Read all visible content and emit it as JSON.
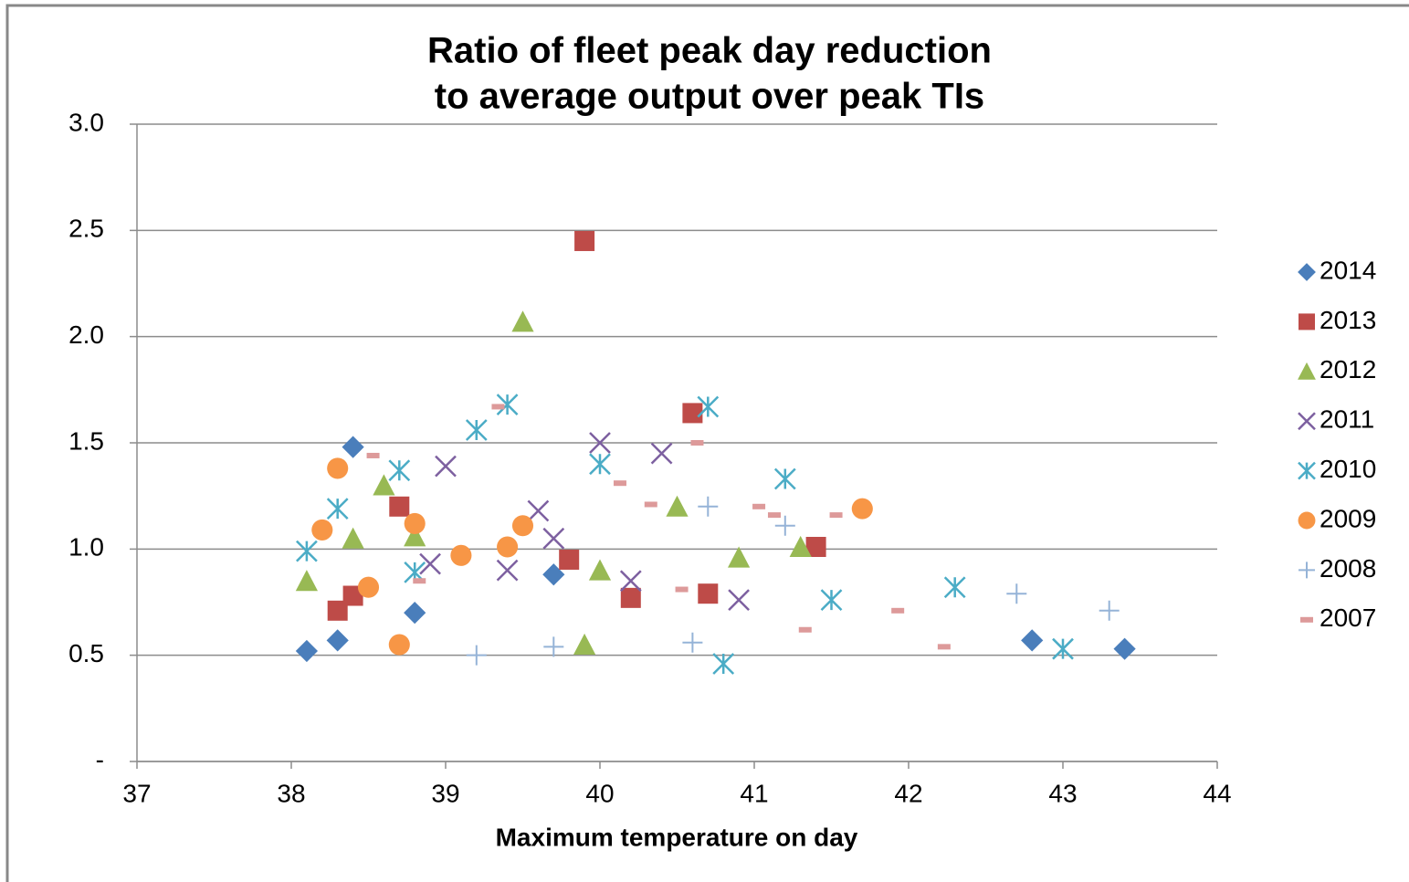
{
  "chart_data": {
    "type": "scatter",
    "title": [
      "Ratio of fleet peak day reduction",
      "to average output over peak TIs"
    ],
    "x_label": "Maximum temperature on day",
    "xlim": [
      37,
      44
    ],
    "xticks": [
      37,
      38,
      39,
      40,
      41,
      42,
      43,
      44
    ],
    "ylim": [
      0,
      3
    ],
    "yticks": [
      {
        "value": 0,
        "label": "-"
      },
      0.5,
      {
        "value": 1,
        "label": "1.0"
      },
      1.5,
      {
        "value": 2,
        "label": "2.0"
      },
      2.5,
      {
        "value": 3,
        "label": "3.0"
      }
    ],
    "grid": true,
    "legend": "right",
    "series": [
      {
        "name": "2014",
        "color": "#4a7ebb",
        "marker": "diamond",
        "x": [
          38.1,
          38.3,
          38.4,
          38.8,
          39.7,
          42.8,
          43.4
        ],
        "values": [
          0.52,
          0.57,
          1.48,
          0.7,
          0.88,
          0.57,
          0.53
        ]
      },
      {
        "name": "2013",
        "color": "#be4b48",
        "marker": "square",
        "x": [
          39.9,
          38.3,
          38.4,
          38.7,
          39.8,
          40.2,
          40.6,
          40.7,
          41.4
        ],
        "values": [
          2.45,
          0.71,
          0.78,
          1.2,
          0.95,
          0.77,
          1.64,
          0.79,
          1.01
        ]
      },
      {
        "name": "2012",
        "color": "#98b954",
        "marker": "triangle",
        "x": [
          38.1,
          38.4,
          38.6,
          38.8,
          39.5,
          39.9,
          40.0,
          40.5,
          40.9,
          41.3
        ],
        "values": [
          0.85,
          1.05,
          1.3,
          1.06,
          2.07,
          0.55,
          0.9,
          1.2,
          0.96,
          1.01
        ]
      },
      {
        "name": "2011",
        "color": "#7d60a0",
        "marker": "x",
        "x": [
          39.0,
          38.9,
          39.4,
          39.6,
          39.7,
          40.0,
          40.4,
          40.2,
          40.9
        ],
        "values": [
          1.39,
          0.93,
          0.9,
          1.18,
          1.05,
          1.5,
          1.45,
          0.85,
          0.76
        ]
      },
      {
        "name": "2010",
        "color": "#4bacc6",
        "marker": "star",
        "x": [
          38.1,
          38.3,
          38.7,
          38.8,
          39.2,
          39.4,
          40.0,
          40.7,
          40.8,
          41.2,
          41.5,
          42.3,
          43.0
        ],
        "values": [
          0.99,
          1.19,
          1.37,
          0.89,
          1.56,
          1.68,
          1.4,
          1.67,
          0.46,
          1.33,
          0.76,
          0.82,
          0.53
        ]
      },
      {
        "name": "2009",
        "color": "#f79646",
        "marker": "circle",
        "x": [
          38.2,
          38.3,
          38.5,
          38.7,
          38.8,
          39.1,
          39.4,
          39.5,
          41.7
        ],
        "values": [
          1.09,
          1.38,
          0.82,
          0.55,
          1.12,
          0.97,
          1.01,
          1.11,
          1.19
        ]
      },
      {
        "name": "2008",
        "color": "#95b3d7",
        "marker": "plus",
        "x": [
          39.2,
          39.7,
          40.6,
          40.7,
          41.2,
          42.7,
          43.3
        ],
        "values": [
          0.5,
          0.54,
          0.56,
          1.2,
          1.11,
          0.79,
          0.71
        ]
      },
      {
        "name": "2007",
        "color": "#dd9a9a",
        "marker": "dash",
        "x": [
          38.53,
          38.83,
          39.34,
          40.13,
          40.33,
          40.53,
          40.63,
          41.03,
          41.13,
          41.33,
          41.53,
          41.93,
          42.23
        ],
        "values": [
          1.44,
          0.85,
          1.67,
          1.31,
          1.21,
          0.81,
          1.5,
          1.2,
          1.16,
          0.62,
          1.16,
          0.71,
          0.54
        ]
      }
    ]
  }
}
